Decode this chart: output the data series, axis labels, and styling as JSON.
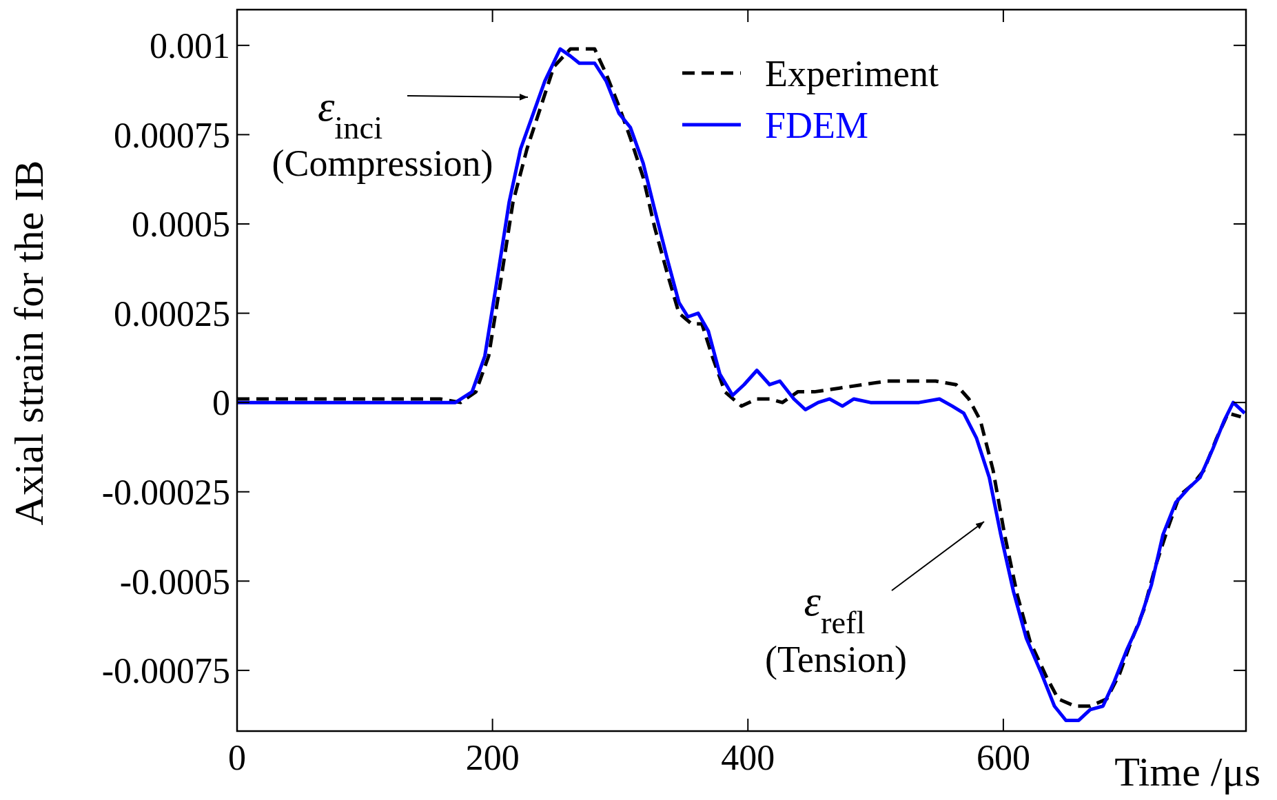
{
  "chart_data": {
    "type": "line",
    "xlabel": "Time /μs",
    "ylabel": "Axial strain for the IB",
    "xlim": [
      0,
      790
    ],
    "xticks": [
      0,
      200,
      400,
      600
    ],
    "ylim": [
      -0.00092,
      0.0011
    ],
    "yticks": [
      -0.00075,
      -0.0005,
      -0.00025,
      0,
      0.00025,
      0.0005,
      0.00075,
      0.001
    ],
    "legend": "top right",
    "grid": false,
    "series": [
      {
        "name": "Experiment",
        "color": "#000000",
        "line_style": "dashed",
        "x": [
          0,
          159,
          175,
          187,
          197,
          206,
          216,
          227,
          238,
          248,
          261,
          280,
          289,
          299,
          308,
          318,
          327,
          337,
          346,
          356,
          364,
          372,
          382,
          395,
          407,
          417,
          427,
          439,
          452,
          471,
          490,
          509,
          528,
          547,
          563,
          573,
          582,
          592,
          601,
          611,
          621,
          634,
          643,
          656,
          668,
          681,
          691,
          700,
          710,
          719,
          729,
          738,
          748,
          757,
          767,
          776,
          786
        ],
        "values": [
          1e-05,
          1e-05,
          0,
          3e-05,
          0.00013,
          0.00033,
          0.00056,
          0.00071,
          0.00083,
          0.00094,
          0.00099,
          0.00099,
          0.00092,
          0.00083,
          0.00074,
          0.00063,
          0.00049,
          0.00036,
          0.00025,
          0.00022,
          0.00022,
          0.00013,
          3e-05,
          -1e-05,
          1e-05,
          1e-05,
          0,
          3e-05,
          3e-05,
          4e-05,
          5e-05,
          6e-05,
          6e-05,
          6e-05,
          5e-05,
          1e-05,
          -5e-05,
          -0.00019,
          -0.00037,
          -0.00054,
          -0.00067,
          -0.00077,
          -0.00083,
          -0.00085,
          -0.00085,
          -0.00083,
          -0.00076,
          -0.00067,
          -0.00058,
          -0.00046,
          -0.00035,
          -0.00026,
          -0.00023,
          -0.00019,
          -0.0001,
          -3e-05,
          -4e-05
        ]
      },
      {
        "name": "FDEM",
        "color": "#0000ff",
        "line_style": "solid",
        "x": [
          0,
          171,
          184,
          194,
          203,
          213,
          222,
          232,
          241,
          253,
          261,
          268,
          280,
          289,
          299,
          308,
          318,
          327,
          337,
          346,
          353,
          361,
          369,
          378,
          388,
          397,
          407,
          417,
          425,
          436,
          445,
          455,
          464,
          474,
          483,
          496,
          515,
          534,
          550,
          560,
          569,
          579,
          589,
          598,
          608,
          618,
          630,
          640,
          649,
          659,
          668,
          678,
          687,
          697,
          706,
          716,
          725,
          735,
          745,
          754,
          764,
          773,
          780,
          789
        ],
        "values": [
          0,
          0,
          3e-05,
          0.00013,
          0.00033,
          0.00056,
          0.00071,
          0.00081,
          0.0009,
          0.00099,
          0.00097,
          0.00095,
          0.00095,
          0.0009,
          0.00081,
          0.00077,
          0.00067,
          0.00054,
          0.0004,
          0.00028,
          0.00024,
          0.00025,
          0.0002,
          8e-05,
          2e-05,
          5e-05,
          9e-05,
          5e-05,
          6e-05,
          1e-05,
          -2e-05,
          0,
          1e-05,
          -1e-05,
          1e-05,
          0,
          0,
          0,
          1e-05,
          -1e-05,
          -3e-05,
          -0.0001,
          -0.00021,
          -0.00037,
          -0.00053,
          -0.00066,
          -0.00076,
          -0.00085,
          -0.00089,
          -0.00089,
          -0.00086,
          -0.00085,
          -0.00078,
          -0.00069,
          -0.00062,
          -0.00051,
          -0.00037,
          -0.00028,
          -0.00024,
          -0.00021,
          -0.00013,
          -5e-05,
          0,
          -3e-05
        ]
      }
    ],
    "annotations": [
      "ε$_{inci}$\n(Compression)",
      "ε$_{refl}$\n(Tension)"
    ]
  }
}
